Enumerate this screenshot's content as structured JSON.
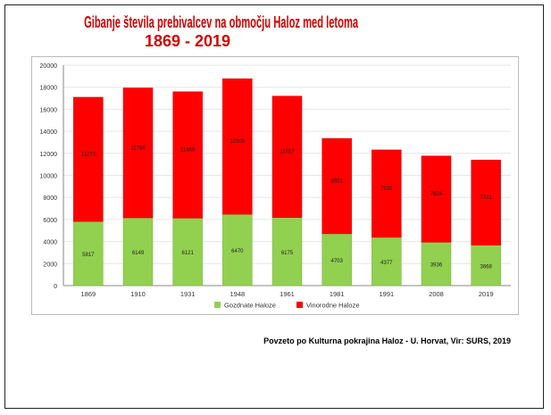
{
  "title_line1": "Gibanje števila prebivalcev na območju Haloz med letoma",
  "title_line2": "1869 - 2019",
  "caption": "Povzeto po Kulturna pokrajina Haloz -  U. Horvat, Vir: SURS, 2019",
  "chart_data": {
    "type": "bar",
    "stacked": true,
    "categories": [
      "1869",
      "1910",
      "1931",
      "1948",
      "1961",
      "1981",
      "1991",
      "2008",
      "2019"
    ],
    "series": [
      {
        "name": "Gozdnate Haloze",
        "color": "#92d050",
        "values": [
          5817,
          6149,
          6121,
          6470,
          6175,
          4703,
          4377,
          3936,
          3668
        ]
      },
      {
        "name": "Vinorodne Haloze",
        "color": "#ff0000",
        "values": [
          11273,
          11784,
          11469,
          12300,
          11017,
          8651,
          7935,
          7824,
          7721
        ]
      }
    ],
    "ylim": [
      0,
      20000
    ],
    "yticks": [
      0,
      2000,
      4000,
      6000,
      8000,
      10000,
      12000,
      14000,
      16000,
      18000,
      20000
    ],
    "legend": "bottom",
    "grid": true
  }
}
